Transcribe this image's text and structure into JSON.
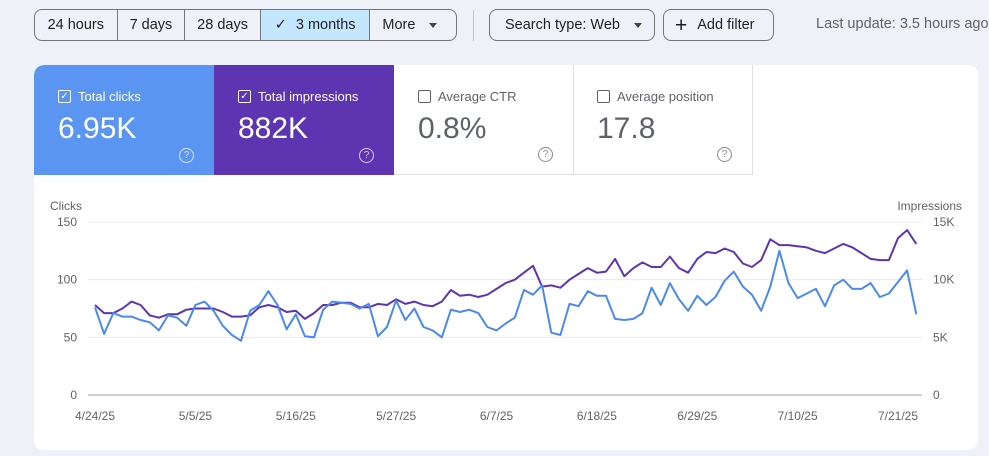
{
  "filters": {
    "ranges": [
      {
        "label": "24 hours",
        "selected": false
      },
      {
        "label": "7 days",
        "selected": false
      },
      {
        "label": "28 days",
        "selected": false
      },
      {
        "label": "3 months",
        "selected": true
      },
      {
        "label": "More",
        "selected": false
      }
    ],
    "check_icon": "✓",
    "search_type": "Search type: Web",
    "add_filter": "Add filter",
    "add_icon": "+",
    "last_update": "Last update: 3.5 hours ago"
  },
  "metrics": [
    {
      "label": "Total clicks",
      "value": "6.95K",
      "checked": true,
      "color": "#5a95f2"
    },
    {
      "label": "Total impressions",
      "value": "882K",
      "checked": true,
      "color": "#5e35b1"
    },
    {
      "label": "Average CTR",
      "value": "0.8%",
      "checked": false
    },
    {
      "label": "Average position",
      "value": "17.8",
      "checked": false
    }
  ],
  "help_icon": "?",
  "checkbox_mark": "✓",
  "chart_data": {
    "type": "line",
    "left_axis": {
      "label": "Clicks",
      "ticks": [
        "0",
        "50",
        "100",
        "150"
      ],
      "range": [
        0,
        150
      ]
    },
    "right_axis": {
      "label": "Impressions",
      "ticks": [
        "0",
        "5K",
        "10K",
        "15K"
      ],
      "range": [
        0,
        15000
      ]
    },
    "x_ticks": [
      "4/24/25",
      "5/5/25",
      "5/16/25",
      "5/27/25",
      "6/7/25",
      "6/18/25",
      "6/29/25",
      "7/10/25",
      "7/21/25"
    ],
    "x": [
      "4/24",
      "4/25",
      "4/26",
      "4/27",
      "4/28",
      "4/29",
      "4/30",
      "5/1",
      "5/2",
      "5/3",
      "5/4",
      "5/5",
      "5/6",
      "5/7",
      "5/8",
      "5/9",
      "5/10",
      "5/11",
      "5/12",
      "5/13",
      "5/14",
      "5/15",
      "5/16",
      "5/17",
      "5/18",
      "5/19",
      "5/20",
      "5/21",
      "5/22",
      "5/23",
      "5/24",
      "5/25",
      "5/26",
      "5/27",
      "5/28",
      "5/29",
      "5/30",
      "5/31",
      "6/1",
      "6/2",
      "6/3",
      "6/4",
      "6/5",
      "6/6",
      "6/7",
      "6/8",
      "6/9",
      "6/10",
      "6/11",
      "6/12",
      "6/13",
      "6/14",
      "6/15",
      "6/16",
      "6/17",
      "6/18",
      "6/19",
      "6/20",
      "6/21",
      "6/22",
      "6/23",
      "6/24",
      "6/25",
      "6/26",
      "6/27",
      "6/28",
      "6/29",
      "6/30",
      "7/1",
      "7/2",
      "7/3",
      "7/4",
      "7/5",
      "7/6",
      "7/7",
      "7/8",
      "7/9",
      "7/10",
      "7/11",
      "7/12",
      "7/13",
      "7/14",
      "7/15",
      "7/16",
      "7/17",
      "7/18",
      "7/19",
      "7/20",
      "7/21",
      "7/22",
      "7/23"
    ],
    "grid": true,
    "series": [
      {
        "name": "Clicks",
        "axis": "left",
        "color": "#4a8af0",
        "values": [
          76,
          53,
          71,
          68,
          68,
          65,
          63,
          56,
          69,
          67,
          60,
          78,
          81,
          73,
          60,
          52,
          47,
          73,
          78,
          90,
          78,
          57,
          70,
          51,
          50,
          74,
          81,
          80,
          79,
          75,
          79,
          51,
          59,
          82,
          65,
          75,
          59,
          56,
          50,
          74,
          72,
          74,
          71,
          59,
          56,
          62,
          67,
          91,
          87,
          95,
          54,
          52,
          79,
          77,
          90,
          86,
          86,
          66,
          65,
          66,
          71,
          93,
          78,
          97,
          83,
          73,
          86,
          78,
          85,
          99,
          107,
          94,
          87,
          73,
          94,
          125,
          97,
          84,
          88,
          92,
          77,
          95,
          100,
          92,
          92,
          97,
          85,
          88,
          98,
          108,
          70
        ]
      },
      {
        "name": "Impressions",
        "axis": "right",
        "color": "#5e35b1",
        "values": [
          7800,
          7100,
          7100,
          7500,
          8100,
          7800,
          6900,
          6700,
          7000,
          7000,
          7400,
          7500,
          7500,
          7500,
          7200,
          6800,
          6800,
          6900,
          7600,
          7800,
          7600,
          7200,
          7300,
          6600,
          7100,
          7800,
          7800,
          8000,
          8000,
          7600,
          7600,
          7900,
          7800,
          8300,
          7900,
          8100,
          7800,
          7700,
          8100,
          9100,
          8600,
          8700,
          8500,
          8700,
          9200,
          9700,
          10000,
          10600,
          11200,
          9400,
          9500,
          9300,
          10000,
          10500,
          11000,
          10600,
          10700,
          11800,
          10300,
          11000,
          11500,
          11100,
          11100,
          12000,
          11000,
          10600,
          11800,
          12400,
          12300,
          12700,
          12400,
          11400,
          11100,
          11700,
          13500,
          13000,
          13000,
          12900,
          12800,
          12500,
          12300,
          12700,
          13100,
          12800,
          12300,
          11800,
          11700,
          11700,
          13600,
          14300,
          13100
        ]
      }
    ]
  }
}
